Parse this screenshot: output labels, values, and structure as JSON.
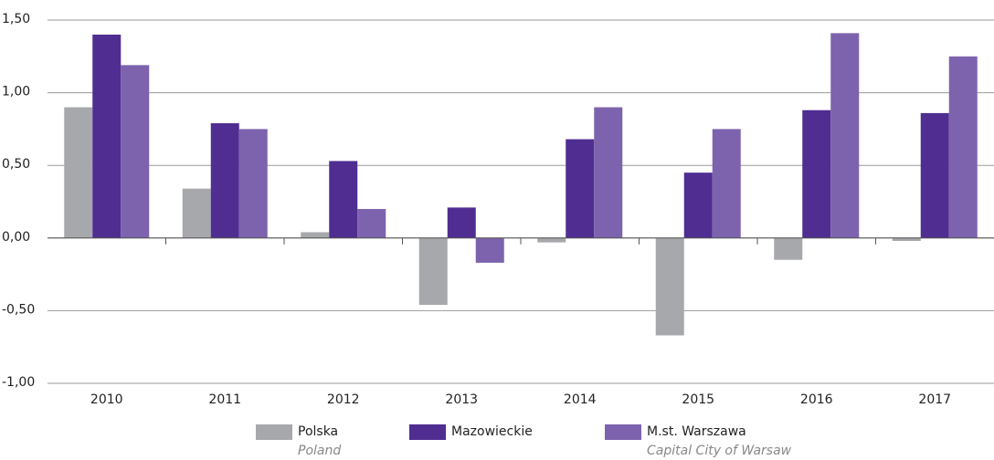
{
  "chart_data": {
    "type": "bar",
    "categories": [
      "2010",
      "2011",
      "2012",
      "2013",
      "2014",
      "2015",
      "2016",
      "2017"
    ],
    "series": [
      {
        "name": "Polska",
        "name_en": "Poland",
        "color": "#a7a8ab",
        "values": [
          0.9,
          0.34,
          0.04,
          -0.46,
          -0.03,
          -0.67,
          -0.15,
          -0.02
        ]
      },
      {
        "name": "Mazowieckie",
        "color": "#4f2d91",
        "values": [
          1.4,
          0.79,
          0.53,
          0.21,
          0.68,
          0.45,
          0.88,
          0.86
        ]
      },
      {
        "name": "M.st. Warszawa",
        "name_en": "Capital City of Warsaw",
        "color": "#7d63ad",
        "values": [
          1.19,
          0.75,
          0.2,
          -0.17,
          0.9,
          0.75,
          1.41,
          1.25
        ]
      }
    ],
    "ylim": [
      -1.0,
      1.5
    ],
    "yticks": [
      {
        "value": -1.0,
        "label": "-1,00"
      },
      {
        "value": -0.5,
        "label": "-0,50"
      },
      {
        "value": 0,
        "label": "0,00"
      },
      {
        "value": 0.5,
        "label": "0,50"
      },
      {
        "value": 1.0,
        "label": "1,00"
      },
      {
        "value": 1.5,
        "label": "1,50"
      }
    ],
    "grid": true
  }
}
